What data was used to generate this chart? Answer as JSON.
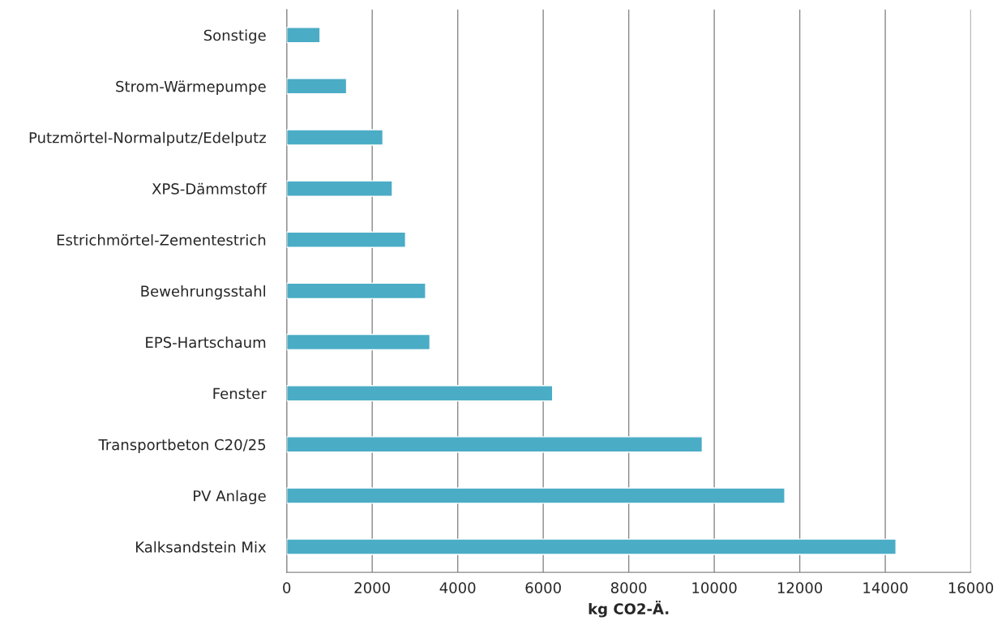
{
  "chart_data": {
    "type": "bar",
    "orientation": "horizontal",
    "xlabel": "kg CO2-Ä.",
    "categories": [
      "Sonstige",
      "Strom-Wärmepumpe",
      "Putzmörtel-Normalputz/Edelputz",
      "XPS-Dämmstoff",
      "Estrichmörtel-Zementestrich",
      "Bewehrungsstahl",
      "EPS-Hartschaum",
      "Fenster",
      "Transportbeton C20/25",
      "PV Anlage",
      "Kalksandstein Mix"
    ],
    "values": [
      780,
      1400,
      2250,
      2470,
      2780,
      3250,
      3350,
      6220,
      9720,
      11650,
      14250
    ],
    "color": "#4bacc6",
    "xlim": [
      0,
      16000
    ],
    "xticks": [
      0,
      2000,
      4000,
      6000,
      8000,
      10000,
      12000,
      14000,
      16000
    ],
    "grid": "x"
  }
}
